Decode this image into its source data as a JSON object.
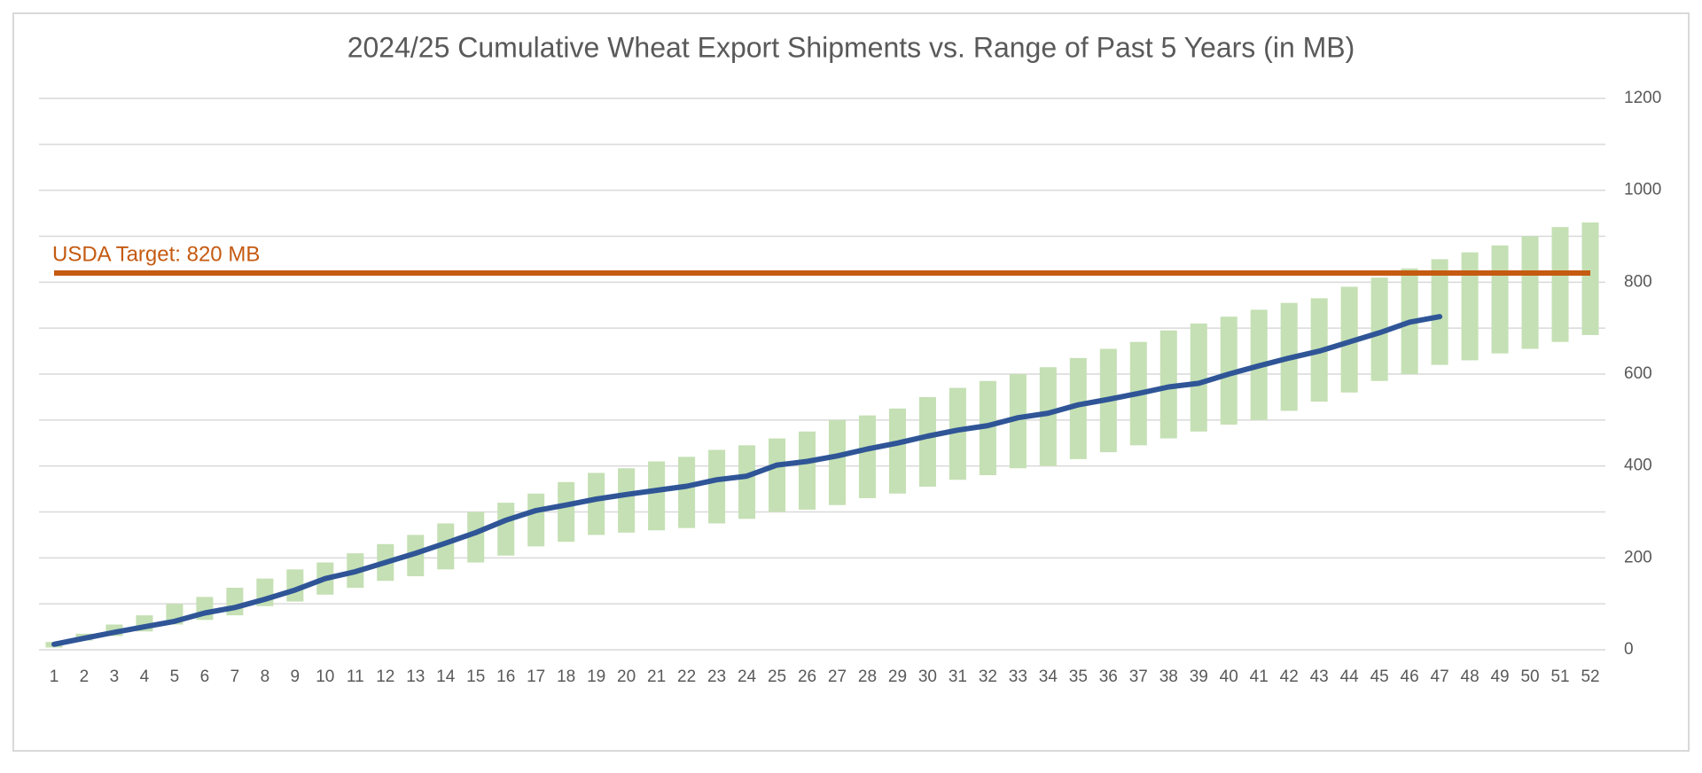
{
  "chart_data": {
    "type": "bar",
    "title": "2024/25 Cumulative Wheat Export Shipments vs. Range of Past 5 Years (in MB)",
    "categories": [
      "1",
      "2",
      "3",
      "4",
      "5",
      "6",
      "7",
      "8",
      "9",
      "10",
      "11",
      "12",
      "13",
      "14",
      "15",
      "16",
      "17",
      "18",
      "19",
      "20",
      "21",
      "22",
      "23",
      "24",
      "25",
      "26",
      "27",
      "28",
      "29",
      "30",
      "31",
      "32",
      "33",
      "34",
      "35",
      "36",
      "37",
      "38",
      "39",
      "40",
      "41",
      "42",
      "43",
      "44",
      "45",
      "46",
      "47",
      "48",
      "49",
      "50",
      "51",
      "52"
    ],
    "ranges": {
      "color": "#c5e0b4",
      "low": [
        5,
        20,
        30,
        40,
        55,
        65,
        75,
        95,
        105,
        120,
        135,
        150,
        160,
        175,
        190,
        205,
        225,
        235,
        250,
        255,
        260,
        265,
        275,
        285,
        300,
        305,
        315,
        330,
        340,
        355,
        370,
        380,
        395,
        400,
        415,
        430,
        445,
        460,
        475,
        490,
        500,
        520,
        540,
        560,
        585,
        600,
        620,
        630,
        645,
        655,
        670,
        685
      ],
      "high": [
        17,
        35,
        55,
        75,
        100,
        115,
        135,
        155,
        175,
        190,
        210,
        230,
        250,
        275,
        300,
        320,
        340,
        365,
        385,
        395,
        410,
        420,
        435,
        445,
        460,
        475,
        500,
        510,
        525,
        550,
        570,
        585,
        600,
        615,
        635,
        655,
        670,
        695,
        710,
        725,
        740,
        755,
        765,
        790,
        810,
        830,
        850,
        865,
        880,
        900,
        920,
        930
      ]
    },
    "line": {
      "color": "#2f5597",
      "values": [
        12,
        25,
        38,
        50,
        62,
        80,
        92,
        110,
        130,
        155,
        170,
        190,
        210,
        232,
        255,
        282,
        303,
        315,
        328,
        338,
        347,
        356,
        370,
        378,
        402,
        410,
        422,
        437,
        450,
        465,
        478,
        488,
        505,
        515,
        533,
        545,
        558,
        572,
        580,
        600,
        618,
        635,
        650,
        670,
        690,
        713,
        725
      ]
    },
    "target": {
      "value": 820,
      "label": "USDA Target: 820 MB",
      "color": "#c55a11"
    },
    "ylim": [
      0,
      1200
    ],
    "yticks": [
      0,
      200,
      400,
      600,
      800,
      1000,
      1200
    ],
    "minor_yticks": [
      100,
      300,
      500,
      700,
      900,
      1100
    ],
    "grid": true,
    "y_axis_side": "right"
  }
}
